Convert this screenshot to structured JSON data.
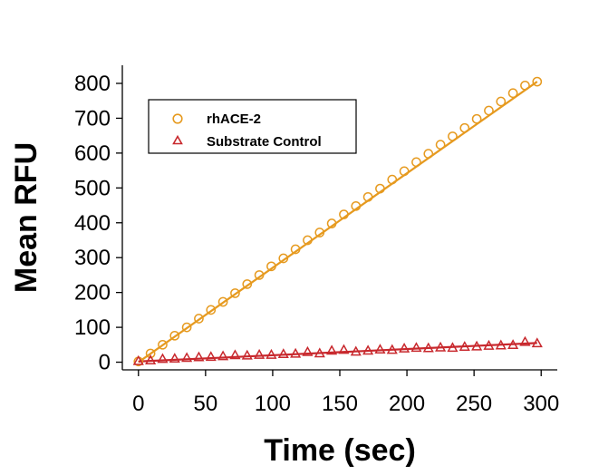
{
  "chart_data": {
    "type": "scatter",
    "title": "",
    "xlabel": "Time (sec)",
    "ylabel": "Mean RFU",
    "xlim": [
      -12,
      312
    ],
    "ylim": [
      -22,
      852
    ],
    "x_ticks": [
      0,
      50,
      100,
      150,
      200,
      250,
      300
    ],
    "y_ticks": [
      0,
      100,
      200,
      300,
      400,
      500,
      600,
      700,
      800
    ],
    "grid": false,
    "legend_position": "top-left",
    "series": [
      {
        "name": "rhACE-2",
        "marker": "circle",
        "color": "#E69A1F",
        "fit_line": [
          [
            0,
            0
          ],
          [
            297,
            805
          ]
        ],
        "x": [
          0,
          9,
          18,
          27,
          36,
          45,
          54,
          63,
          72,
          81,
          90,
          99,
          108,
          117,
          126,
          135,
          144,
          153,
          162,
          171,
          180,
          189,
          198,
          207,
          216,
          225,
          234,
          243,
          252,
          261,
          270,
          279,
          288,
          297
        ],
        "y": [
          2,
          25,
          50,
          76,
          100,
          125,
          150,
          173,
          198,
          224,
          250,
          275,
          298,
          324,
          350,
          372,
          398,
          424,
          448,
          474,
          498,
          524,
          548,
          574,
          598,
          624,
          648,
          672,
          698,
          722,
          748,
          772,
          794,
          805
        ]
      },
      {
        "name": "Substrate Control",
        "marker": "triangle",
        "color": "#C8282D",
        "fit_line": [
          [
            0,
            2
          ],
          [
            297,
            55
          ]
        ],
        "x": [
          0,
          9,
          18,
          27,
          36,
          45,
          54,
          63,
          72,
          81,
          90,
          99,
          108,
          117,
          126,
          135,
          144,
          153,
          162,
          171,
          180,
          189,
          198,
          207,
          216,
          225,
          234,
          243,
          252,
          261,
          270,
          279,
          288,
          297
        ],
        "y": [
          3,
          5,
          9,
          10,
          12,
          14,
          15,
          17,
          20,
          19,
          21,
          21,
          23,
          24,
          29,
          25,
          33,
          35,
          30,
          33,
          36,
          35,
          39,
          41,
          40,
          42,
          41,
          44,
          45,
          47,
          48,
          49,
          58,
          54
        ]
      }
    ]
  }
}
